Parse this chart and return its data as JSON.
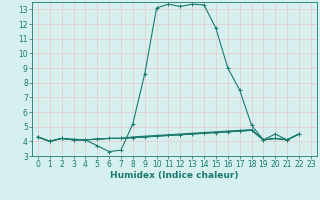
{
  "title": "",
  "xlabel": "Humidex (Indice chaleur)",
  "ylabel": "",
  "bg_color": "#d6f0f0",
  "grid_color": "#c8e8e8",
  "line_color": "#1a7a6e",
  "xlim": [
    -0.5,
    23.5
  ],
  "ylim": [
    3,
    13.5
  ],
  "yticks": [
    3,
    4,
    5,
    6,
    7,
    8,
    9,
    10,
    11,
    12,
    13
  ],
  "xticks": [
    0,
    1,
    2,
    3,
    4,
    5,
    6,
    7,
    8,
    9,
    10,
    11,
    12,
    13,
    14,
    15,
    16,
    17,
    18,
    19,
    20,
    21,
    22,
    23
  ],
  "series1": [
    [
      0,
      4.3
    ],
    [
      1,
      4.0
    ],
    [
      2,
      4.2
    ],
    [
      3,
      4.1
    ],
    [
      4,
      4.1
    ],
    [
      5,
      3.7
    ],
    [
      6,
      3.3
    ],
    [
      7,
      3.4
    ],
    [
      8,
      5.2
    ],
    [
      9,
      8.6
    ],
    [
      10,
      13.1
    ],
    [
      11,
      13.35
    ],
    [
      12,
      13.2
    ],
    [
      13,
      13.35
    ],
    [
      14,
      13.3
    ],
    [
      15,
      11.7
    ],
    [
      16,
      9.0
    ],
    [
      17,
      7.5
    ],
    [
      18,
      5.1
    ],
    [
      19,
      4.1
    ],
    [
      20,
      4.5
    ],
    [
      21,
      4.1
    ],
    [
      22,
      4.5
    ]
  ],
  "series2": [
    [
      0,
      4.3
    ],
    [
      1,
      4.0
    ],
    [
      2,
      4.2
    ],
    [
      3,
      4.1
    ],
    [
      4,
      4.1
    ],
    [
      5,
      4.15
    ],
    [
      6,
      4.2
    ],
    [
      7,
      4.2
    ],
    [
      8,
      4.25
    ],
    [
      9,
      4.3
    ],
    [
      10,
      4.35
    ],
    [
      11,
      4.4
    ],
    [
      12,
      4.45
    ],
    [
      13,
      4.5
    ],
    [
      14,
      4.55
    ],
    [
      15,
      4.6
    ],
    [
      16,
      4.65
    ],
    [
      17,
      4.7
    ],
    [
      18,
      4.75
    ],
    [
      19,
      4.1
    ],
    [
      20,
      4.2
    ],
    [
      21,
      4.1
    ],
    [
      22,
      4.5
    ]
  ],
  "series3": [
    [
      0,
      4.3
    ],
    [
      1,
      4.0
    ],
    [
      2,
      4.2
    ],
    [
      3,
      4.1
    ],
    [
      4,
      4.1
    ],
    [
      5,
      4.15
    ],
    [
      6,
      4.2
    ],
    [
      7,
      4.2
    ],
    [
      8,
      4.3
    ],
    [
      9,
      4.35
    ],
    [
      10,
      4.4
    ],
    [
      11,
      4.45
    ],
    [
      12,
      4.5
    ],
    [
      13,
      4.55
    ],
    [
      14,
      4.6
    ],
    [
      15,
      4.65
    ],
    [
      16,
      4.7
    ],
    [
      17,
      4.75
    ],
    [
      18,
      4.8
    ],
    [
      19,
      4.1
    ],
    [
      20,
      4.2
    ],
    [
      21,
      4.1
    ],
    [
      22,
      4.5
    ]
  ],
  "series4": [
    [
      0,
      4.3
    ],
    [
      1,
      4.0
    ],
    [
      2,
      4.2
    ],
    [
      3,
      4.15
    ],
    [
      4,
      4.1
    ],
    [
      5,
      4.15
    ],
    [
      6,
      4.2
    ],
    [
      7,
      4.2
    ],
    [
      8,
      4.25
    ],
    [
      9,
      4.3
    ],
    [
      10,
      4.35
    ],
    [
      11,
      4.4
    ],
    [
      12,
      4.45
    ],
    [
      13,
      4.5
    ],
    [
      14,
      4.55
    ],
    [
      15,
      4.6
    ],
    [
      16,
      4.65
    ],
    [
      17,
      4.7
    ],
    [
      18,
      4.75
    ],
    [
      19,
      4.1
    ],
    [
      20,
      4.2
    ],
    [
      21,
      4.1
    ],
    [
      22,
      4.5
    ]
  ]
}
